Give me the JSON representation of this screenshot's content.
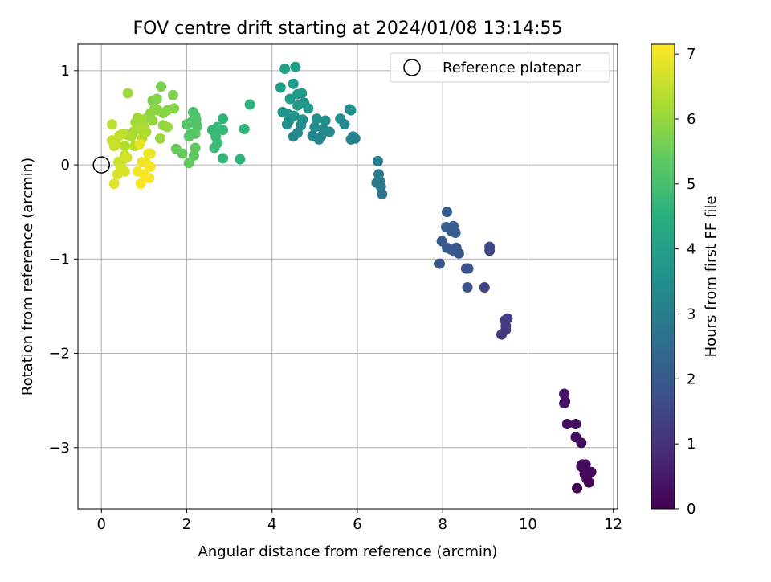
{
  "chart_data": {
    "type": "scatter",
    "title": "FOV centre drift starting at 2024/01/08 13:14:55",
    "xlabel": "Angular distance from reference (arcmin)",
    "ylabel": "Rotation from reference (arcmin)",
    "xlim": [
      -0.55,
      12.1
    ],
    "ylim": [
      -3.65,
      1.28
    ],
    "xticks": [
      0,
      2,
      4,
      6,
      8,
      10,
      12
    ],
    "yticks": [
      -3,
      -2,
      -1,
      0,
      1
    ],
    "grid": true,
    "legend": {
      "placement": "top-right",
      "entries": [
        {
          "label": "Reference platepar",
          "marker": "open-circle",
          "x": 0,
          "y": 0
        }
      ]
    },
    "colorbar": {
      "label": "Hours from first FF file",
      "colormap": "viridis",
      "range": [
        0,
        7.15
      ],
      "ticks": [
        0,
        1,
        2,
        3,
        4,
        5,
        6,
        7
      ]
    },
    "series": [
      {
        "points": [
          {
            "x": 10.85,
            "y": -2.43,
            "c": 0.35
          },
          {
            "x": 10.87,
            "y": -2.51,
            "c": 0.35
          },
          {
            "x": 10.85,
            "y": -2.53,
            "c": 0.35
          },
          {
            "x": 10.92,
            "y": -2.75,
            "c": 0.3
          },
          {
            "x": 11.12,
            "y": -2.75,
            "c": 0.3
          },
          {
            "x": 11.12,
            "y": -2.89,
            "c": 0.25
          },
          {
            "x": 11.25,
            "y": -2.95,
            "c": 0.25
          },
          {
            "x": 11.27,
            "y": -3.18,
            "c": 0.2
          },
          {
            "x": 11.35,
            "y": -3.18,
            "c": 0.2
          },
          {
            "x": 11.3,
            "y": -3.22,
            "c": 0.2
          },
          {
            "x": 11.48,
            "y": -3.26,
            "c": 0.15
          },
          {
            "x": 11.33,
            "y": -3.28,
            "c": 0.15
          },
          {
            "x": 11.38,
            "y": -3.33,
            "c": 0.15
          },
          {
            "x": 11.43,
            "y": -3.37,
            "c": 0.1
          },
          {
            "x": 11.15,
            "y": -3.43,
            "c": 0.05
          },
          {
            "x": 11.25,
            "y": -3.2,
            "c": 0.2
          },
          {
            "x": 9.52,
            "y": -1.63,
            "c": 1.3
          },
          {
            "x": 9.46,
            "y": -1.65,
            "c": 1.3
          },
          {
            "x": 9.48,
            "y": -1.71,
            "c": 1.25
          },
          {
            "x": 9.48,
            "y": -1.75,
            "c": 1.25
          },
          {
            "x": 9.38,
            "y": -1.8,
            "c": 1.2
          },
          {
            "x": 8.98,
            "y": -1.3,
            "c": 1.4
          },
          {
            "x": 9.1,
            "y": -0.87,
            "c": 1.6
          },
          {
            "x": 9.1,
            "y": -0.91,
            "c": 1.55
          },
          {
            "x": 8.1,
            "y": -0.5,
            "c": 2.2
          },
          {
            "x": 8.08,
            "y": -0.66,
            "c": 2.15
          },
          {
            "x": 8.25,
            "y": -0.65,
            "c": 2.1
          },
          {
            "x": 8.2,
            "y": -0.7,
            "c": 2.1
          },
          {
            "x": 8.3,
            "y": -0.72,
            "c": 2.05
          },
          {
            "x": 7.98,
            "y": -0.81,
            "c": 2.05
          },
          {
            "x": 8.1,
            "y": -0.88,
            "c": 2.0
          },
          {
            "x": 8.2,
            "y": -0.9,
            "c": 2.0
          },
          {
            "x": 8.32,
            "y": -0.88,
            "c": 1.95
          },
          {
            "x": 8.28,
            "y": -0.92,
            "c": 1.95
          },
          {
            "x": 8.38,
            "y": -0.94,
            "c": 1.9
          },
          {
            "x": 7.93,
            "y": -1.05,
            "c": 1.9
          },
          {
            "x": 8.55,
            "y": -1.1,
            "c": 1.85
          },
          {
            "x": 8.6,
            "y": -1.1,
            "c": 1.85
          },
          {
            "x": 8.58,
            "y": -1.3,
            "c": 1.8
          },
          {
            "x": 6.48,
            "y": 0.04,
            "c": 3.0
          },
          {
            "x": 6.5,
            "y": -0.1,
            "c": 2.95
          },
          {
            "x": 6.52,
            "y": -0.17,
            "c": 2.9
          },
          {
            "x": 6.45,
            "y": -0.19,
            "c": 2.9
          },
          {
            "x": 6.55,
            "y": -0.23,
            "c": 2.85
          },
          {
            "x": 6.58,
            "y": -0.31,
            "c": 2.8
          },
          {
            "x": 4.3,
            "y": 1.02,
            "c": 4.0
          },
          {
            "x": 4.55,
            "y": 1.04,
            "c": 4.0
          },
          {
            "x": 4.2,
            "y": 0.82,
            "c": 4.0
          },
          {
            "x": 4.5,
            "y": 0.86,
            "c": 3.95
          },
          {
            "x": 4.6,
            "y": 0.75,
            "c": 3.9
          },
          {
            "x": 4.7,
            "y": 0.76,
            "c": 3.9
          },
          {
            "x": 4.42,
            "y": 0.7,
            "c": 3.85
          },
          {
            "x": 4.75,
            "y": 0.66,
            "c": 3.8
          },
          {
            "x": 4.6,
            "y": 0.63,
            "c": 3.8
          },
          {
            "x": 4.85,
            "y": 0.6,
            "c": 3.75
          },
          {
            "x": 4.25,
            "y": 0.56,
            "c": 3.75
          },
          {
            "x": 4.37,
            "y": 0.54,
            "c": 3.7
          },
          {
            "x": 4.52,
            "y": 0.52,
            "c": 3.7
          },
          {
            "x": 4.72,
            "y": 0.48,
            "c": 3.65
          },
          {
            "x": 4.4,
            "y": 0.47,
            "c": 3.65
          },
          {
            "x": 5.05,
            "y": 0.49,
            "c": 3.6
          },
          {
            "x": 5.25,
            "y": 0.47,
            "c": 3.6
          },
          {
            "x": 5.6,
            "y": 0.49,
            "c": 3.55
          },
          {
            "x": 5.85,
            "y": 0.58,
            "c": 3.55
          },
          {
            "x": 5.82,
            "y": 0.59,
            "c": 3.55
          },
          {
            "x": 4.68,
            "y": 0.42,
            "c": 3.5
          },
          {
            "x": 4.35,
            "y": 0.43,
            "c": 3.5
          },
          {
            "x": 5.0,
            "y": 0.4,
            "c": 3.45
          },
          {
            "x": 5.2,
            "y": 0.38,
            "c": 3.45
          },
          {
            "x": 5.35,
            "y": 0.35,
            "c": 3.4
          },
          {
            "x": 5.7,
            "y": 0.43,
            "c": 3.4
          },
          {
            "x": 4.6,
            "y": 0.34,
            "c": 3.35
          },
          {
            "x": 4.5,
            "y": 0.3,
            "c": 3.35
          },
          {
            "x": 4.95,
            "y": 0.31,
            "c": 3.3
          },
          {
            "x": 5.15,
            "y": 0.3,
            "c": 3.3
          },
          {
            "x": 5.1,
            "y": 0.27,
            "c": 3.25
          },
          {
            "x": 5.9,
            "y": 0.3,
            "c": 3.2
          },
          {
            "x": 5.85,
            "y": 0.27,
            "c": 3.2
          },
          {
            "x": 5.95,
            "y": 0.28,
            "c": 3.15
          },
          {
            "x": 3.48,
            "y": 0.64,
            "c": 4.6
          },
          {
            "x": 2.85,
            "y": 0.49,
            "c": 4.7
          },
          {
            "x": 3.35,
            "y": 0.38,
            "c": 4.65
          },
          {
            "x": 3.25,
            "y": 0.06,
            "c": 4.65
          },
          {
            "x": 2.85,
            "y": 0.07,
            "c": 4.75
          },
          {
            "x": 2.6,
            "y": 0.37,
            "c": 4.8
          },
          {
            "x": 2.72,
            "y": 0.4,
            "c": 4.8
          },
          {
            "x": 2.68,
            "y": 0.3,
            "c": 4.85
          },
          {
            "x": 2.65,
            "y": 0.18,
            "c": 4.9
          },
          {
            "x": 2.72,
            "y": 0.23,
            "c": 4.85
          },
          {
            "x": 2.85,
            "y": 0.37,
            "c": 4.8
          },
          {
            "x": 2.15,
            "y": 0.56,
            "c": 5.1
          },
          {
            "x": 2.2,
            "y": 0.52,
            "c": 5.15
          },
          {
            "x": 2.22,
            "y": 0.48,
            "c": 5.15
          },
          {
            "x": 2.1,
            "y": 0.45,
            "c": 5.2
          },
          {
            "x": 2.25,
            "y": 0.41,
            "c": 5.2
          },
          {
            "x": 2.0,
            "y": 0.43,
            "c": 5.25
          },
          {
            "x": 2.05,
            "y": 0.3,
            "c": 5.3
          },
          {
            "x": 2.2,
            "y": 0.33,
            "c": 5.3
          },
          {
            "x": 2.1,
            "y": 0.33,
            "c": 5.25
          },
          {
            "x": 2.2,
            "y": 0.18,
            "c": 5.35
          },
          {
            "x": 2.17,
            "y": 0.1,
            "c": 5.35
          },
          {
            "x": 2.05,
            "y": 0.02,
            "c": 5.4
          },
          {
            "x": 1.9,
            "y": 0.12,
            "c": 5.45
          },
          {
            "x": 1.75,
            "y": 0.17,
            "c": 5.5
          },
          {
            "x": 1.4,
            "y": 0.83,
            "c": 5.7
          },
          {
            "x": 1.68,
            "y": 0.74,
            "c": 5.75
          },
          {
            "x": 1.2,
            "y": 0.68,
            "c": 5.75
          },
          {
            "x": 1.3,
            "y": 0.7,
            "c": 5.8
          },
          {
            "x": 1.55,
            "y": 0.58,
            "c": 5.8
          },
          {
            "x": 1.7,
            "y": 0.6,
            "c": 5.85
          },
          {
            "x": 1.45,
            "y": 0.55,
            "c": 5.85
          },
          {
            "x": 1.25,
            "y": 0.6,
            "c": 5.9
          },
          {
            "x": 1.32,
            "y": 0.58,
            "c": 5.9
          },
          {
            "x": 1.15,
            "y": 0.55,
            "c": 5.95
          },
          {
            "x": 1.08,
            "y": 0.5,
            "c": 5.95
          },
          {
            "x": 1.2,
            "y": 0.47,
            "c": 6.0
          },
          {
            "x": 1.45,
            "y": 0.42,
            "c": 6.0
          },
          {
            "x": 1.55,
            "y": 0.4,
            "c": 6.05
          },
          {
            "x": 1.38,
            "y": 0.28,
            "c": 6.05
          },
          {
            "x": 0.62,
            "y": 0.76,
            "c": 6.1
          },
          {
            "x": 0.85,
            "y": 0.5,
            "c": 6.1
          },
          {
            "x": 0.95,
            "y": 0.48,
            "c": 6.15
          },
          {
            "x": 0.8,
            "y": 0.45,
            "c": 6.15
          },
          {
            "x": 1.0,
            "y": 0.4,
            "c": 6.2
          },
          {
            "x": 0.75,
            "y": 0.35,
            "c": 6.2
          },
          {
            "x": 0.9,
            "y": 0.38,
            "c": 6.25
          },
          {
            "x": 1.05,
            "y": 0.35,
            "c": 6.25
          },
          {
            "x": 0.7,
            "y": 0.3,
            "c": 6.3
          },
          {
            "x": 0.6,
            "y": 0.32,
            "c": 6.3
          },
          {
            "x": 0.95,
            "y": 0.28,
            "c": 6.35
          },
          {
            "x": 0.55,
            "y": 0.2,
            "c": 6.35
          },
          {
            "x": 0.78,
            "y": 0.2,
            "c": 6.4
          },
          {
            "x": 0.25,
            "y": 0.43,
            "c": 6.4
          },
          {
            "x": 0.42,
            "y": 0.31,
            "c": 6.5
          },
          {
            "x": 0.5,
            "y": 0.33,
            "c": 6.5
          },
          {
            "x": 0.25,
            "y": 0.26,
            "c": 6.55
          },
          {
            "x": 0.35,
            "y": 0.22,
            "c": 6.55
          },
          {
            "x": 0.3,
            "y": 0.2,
            "c": 6.6
          },
          {
            "x": 0.55,
            "y": 0.1,
            "c": 6.6
          },
          {
            "x": 0.5,
            "y": 0.05,
            "c": 6.65
          },
          {
            "x": 0.4,
            "y": 0.03,
            "c": 6.65
          },
          {
            "x": 0.6,
            "y": 0.08,
            "c": 6.7
          },
          {
            "x": 0.45,
            "y": -0.03,
            "c": 6.7
          },
          {
            "x": 0.38,
            "y": -0.1,
            "c": 6.75
          },
          {
            "x": 0.55,
            "y": -0.07,
            "c": 6.75
          },
          {
            "x": 0.3,
            "y": -0.2,
            "c": 6.8
          },
          {
            "x": 0.9,
            "y": 0.22,
            "c": 6.9
          },
          {
            "x": 1.1,
            "y": 0.12,
            "c": 6.95
          },
          {
            "x": 1.15,
            "y": 0.12,
            "c": 6.95
          },
          {
            "x": 0.95,
            "y": 0.03,
            "c": 7.0
          },
          {
            "x": 1.05,
            "y": 0.02,
            "c": 7.0
          },
          {
            "x": 1.15,
            "y": -0.02,
            "c": 7.05
          },
          {
            "x": 0.85,
            "y": -0.07,
            "c": 7.05
          },
          {
            "x": 1.0,
            "y": -0.1,
            "c": 7.05
          },
          {
            "x": 1.12,
            "y": -0.14,
            "c": 7.1
          },
          {
            "x": 0.92,
            "y": -0.2,
            "c": 7.1
          }
        ]
      }
    ]
  }
}
